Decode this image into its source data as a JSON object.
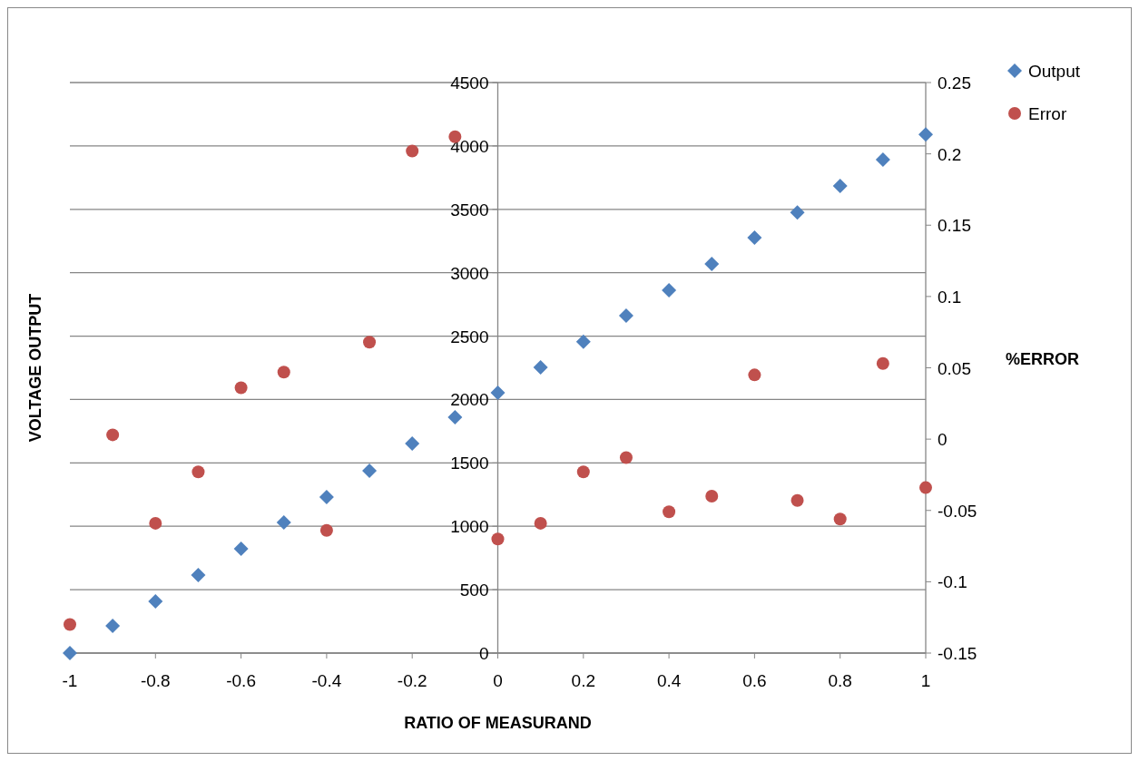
{
  "chart_data": {
    "type": "scatter",
    "xlabel": "RATIO  OF MEASURAND",
    "ylabel": "VOLTAGE OUTPUT",
    "y2label": "%ERROR",
    "x": [
      -1,
      -0.9,
      -0.8,
      -0.7,
      -0.6,
      -0.5,
      -0.4,
      -0.3,
      -0.2,
      -0.1,
      0,
      0.1,
      0.2,
      0.3,
      0.4,
      0.5,
      0.6,
      0.7,
      0.8,
      0.9,
      1
    ],
    "xlim": [
      -1,
      1
    ],
    "xticks": [
      -1,
      -0.8,
      -0.6,
      -0.4,
      -0.2,
      0,
      0.2,
      0.4,
      0.6,
      0.8,
      1
    ],
    "ylim": [
      0,
      4500
    ],
    "yticks": [
      0,
      500,
      1000,
      1500,
      2000,
      2500,
      3000,
      3500,
      4000,
      4500
    ],
    "y2lim": [
      -0.15,
      0.25
    ],
    "y2ticks": [
      -0.15,
      -0.1,
      -0.05,
      0,
      0.05,
      0.1,
      0.15,
      0.2,
      0.25
    ],
    "grid": "y",
    "legend": "top right",
    "series": [
      {
        "name": "Output",
        "color": "#4f81bd",
        "marker": "diamond",
        "values": [
          0,
          215,
          408,
          615,
          823,
          1030,
          1230,
          1438,
          1652,
          1860,
          2053,
          2253,
          2455,
          2661,
          2861,
          3069,
          3276,
          3476,
          3684,
          3891,
          4090
        ]
      },
      {
        "name": "Error",
        "color": "#c0504d",
        "marker": "circle",
        "axis": "y2",
        "values": [
          -0.13,
          0.003,
          -0.059,
          -0.023,
          0.036,
          0.047,
          -0.064,
          0.068,
          0.202,
          0.212,
          -0.07,
          -0.059,
          -0.023,
          -0.013,
          -0.051,
          -0.04,
          0.045,
          -0.043,
          -0.056,
          0.053,
          -0.034
        ]
      }
    ]
  }
}
